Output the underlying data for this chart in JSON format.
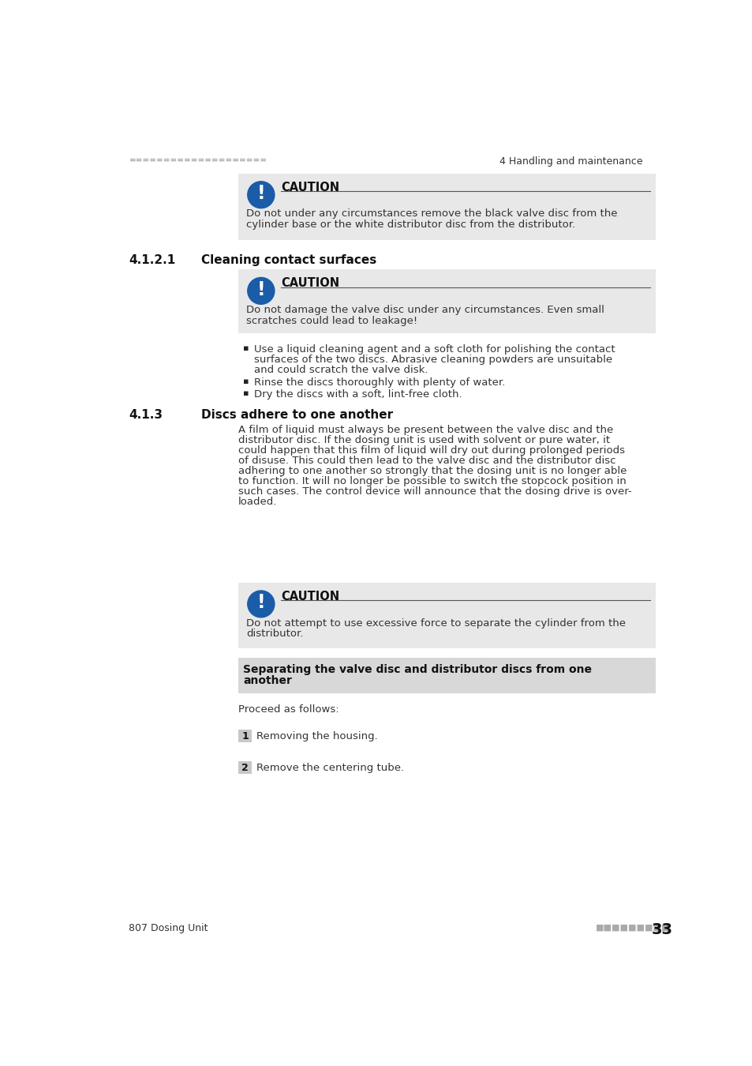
{
  "page_bg": "#ffffff",
  "header_dots_color": "#aaaaaa",
  "header_right_text": "4 Handling and maintenance",
  "header_left_dots": "====================",
  "caution_bg": "#e8e8e8",
  "caution_icon_bg": "#1a5ca8",
  "caution_title": "CAUTION",
  "caution1_text_line1": "Do not under any circumstances remove the black valve disc from the",
  "caution1_text_line2": "cylinder base or the white distributor disc from the distributor.",
  "section_421_number": "4.1.2.1",
  "section_421_title": "Cleaning contact surfaces",
  "caution2_text_line1": "Do not damage the valve disc under any circumstances. Even small",
  "caution2_text_line2": "scratches could lead to leakage!",
  "bullet1_lines": [
    "Use a liquid cleaning agent and a soft cloth for polishing the contact",
    "surfaces of the two discs. Abrasive cleaning powders are unsuitable",
    "and could scratch the valve disk."
  ],
  "bullet2": "Rinse the discs thoroughly with plenty of water.",
  "bullet3": "Dry the discs with a soft, lint-free cloth.",
  "section_413_number": "4.1.3",
  "section_413_title": "Discs adhere to one another",
  "section_413_body": [
    "A film of liquid must always be present between the valve disc and the",
    "distributor disc. If the dosing unit is used with solvent or pure water, it",
    "could happen that this film of liquid will dry out during prolonged periods",
    "of disuse. This could then lead to the valve disc and the distributor disc",
    "adhering to one another so strongly that the dosing unit is no longer able",
    "to function. It will no longer be possible to switch the stopcock position in",
    "such cases. The control device will announce that the dosing drive is over-",
    "loaded."
  ],
  "caution3_text_line1": "Do not attempt to use excessive force to separate the cylinder from the",
  "caution3_text_line2": "distributor.",
  "sub_header_bg": "#d8d8d8",
  "sub_header_line1": "Separating the valve disc and distributor discs from one",
  "sub_header_line2": "another",
  "proceed_text": "Proceed as follows:",
  "step1_num": "1",
  "step1_text": "Removing the housing.",
  "step2_num": "2",
  "step2_text": "Remove the centering tube.",
  "step_bg": "#c8c8c8",
  "footer_left": "807 Dosing Unit",
  "footer_dots": "■■■■■■■■■",
  "footer_page": "33"
}
